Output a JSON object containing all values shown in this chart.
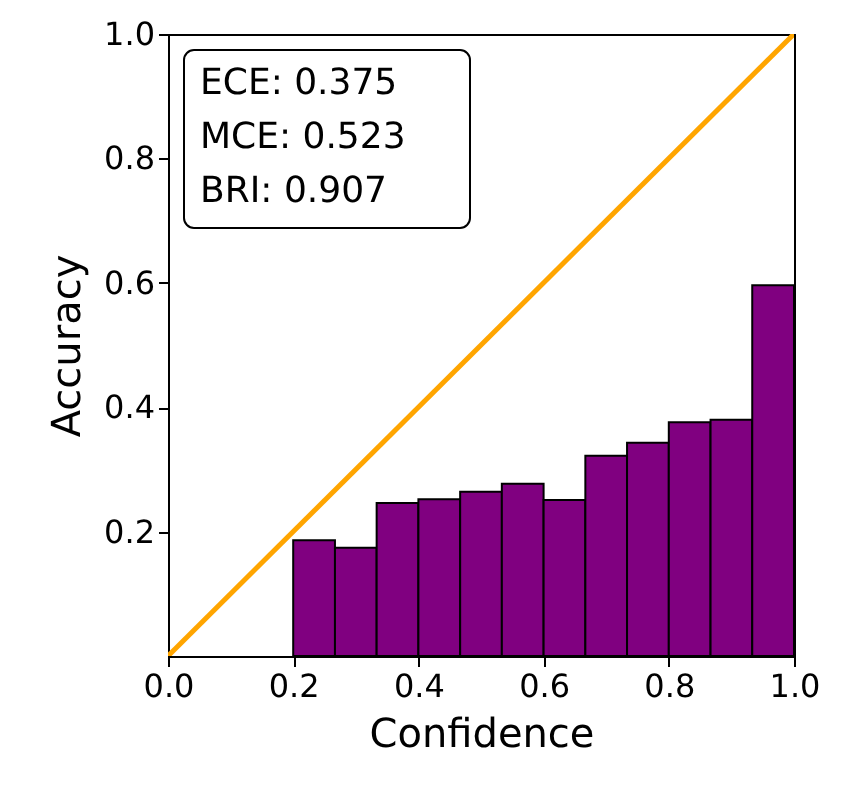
{
  "chart_data": {
    "type": "histogram",
    "xlabel": "Confidence",
    "ylabel": "Accuracy",
    "xlim": [
      0.0,
      1.0
    ],
    "ylim": [
      0.0,
      1.0
    ],
    "xticks": [
      {
        "value": 0,
        "label": "0.0"
      },
      0.2,
      0.4,
      0.6,
      0.8,
      {
        "value": 1,
        "label": "1.0"
      }
    ],
    "yticks": [
      0.2,
      0.4,
      0.6,
      0.8,
      {
        "value": 1,
        "label": "1.0"
      }
    ],
    "grid": false,
    "series": [
      {
        "color": "#800080",
        "bins": [
          0.2,
          0.2667,
          0.3333,
          0.4,
          0.4667,
          0.5333,
          0.6,
          0.6667,
          0.7333,
          0.8,
          0.8667,
          0.9333,
          1.0
        ],
        "values": [
          0.186,
          0.174,
          0.246,
          0.252,
          0.264,
          0.277,
          0.251,
          0.322,
          0.343,
          0.376,
          0.38,
          0.596
        ]
      },
      {
        "type": "line",
        "color": "#ffa500",
        "x": [
          0.0,
          1.0
        ],
        "values": [
          0.0,
          1.0
        ]
      }
    ],
    "annotations": [
      "ECE:  0.375",
      "MCE: 0.523",
      "BRI:  0.907"
    ]
  }
}
